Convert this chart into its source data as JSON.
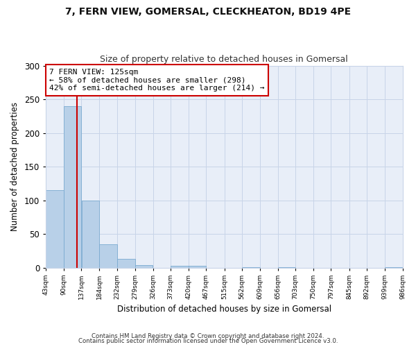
{
  "title": "7, FERN VIEW, GOMERSAL, CLECKHEATON, BD19 4PE",
  "subtitle": "Size of property relative to detached houses in Gomersal",
  "xlabel": "Distribution of detached houses by size in Gomersal",
  "ylabel": "Number of detached properties",
  "bin_edges": [
    43,
    90,
    137,
    184,
    232,
    279,
    326,
    373,
    420,
    467,
    515,
    562,
    609,
    656,
    703,
    750,
    797,
    845,
    892,
    939,
    986
  ],
  "bin_counts": [
    115,
    240,
    100,
    35,
    13,
    4,
    0,
    3,
    3,
    0,
    0,
    1,
    0,
    1,
    0,
    0,
    0,
    0,
    0,
    1
  ],
  "bar_color": "#b8d0e8",
  "bar_edge_color": "#7aaad0",
  "property_line_x": 125,
  "property_line_color": "#cc0000",
  "annotation_title": "7 FERN VIEW: 125sqm",
  "annotation_line1": "← 58% of detached houses are smaller (298)",
  "annotation_line2": "42% of semi-detached houses are larger (214) →",
  "annotation_box_color": "#cc0000",
  "ylim": [
    0,
    300
  ],
  "yticks": [
    0,
    50,
    100,
    150,
    200,
    250,
    300
  ],
  "xtick_labels": [
    "43sqm",
    "90sqm",
    "137sqm",
    "184sqm",
    "232sqm",
    "279sqm",
    "326sqm",
    "373sqm",
    "420sqm",
    "467sqm",
    "515sqm",
    "562sqm",
    "609sqm",
    "656sqm",
    "703sqm",
    "750sqm",
    "797sqm",
    "845sqm",
    "892sqm",
    "939sqm",
    "986sqm"
  ],
  "footer1": "Contains HM Land Registry data © Crown copyright and database right 2024.",
  "footer2": "Contains public sector information licensed under the Open Government Licence v3.0.",
  "background_color": "#ffffff",
  "plot_bg_color": "#e8eef8",
  "grid_color": "#c8d4e8"
}
